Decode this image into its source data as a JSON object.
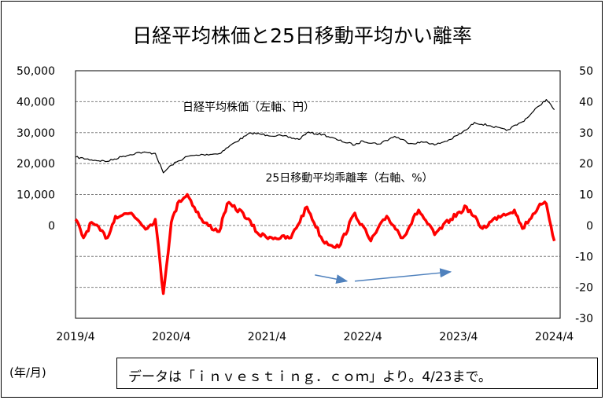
{
  "chart_data": {
    "type": "line",
    "title": "日経平均株価と25日移動平均かい離率",
    "x_ticks": [
      "2019/4",
      "2020/4",
      "2021/4",
      "2022/4",
      "2023/4",
      "2024/4"
    ],
    "x_range": [
      "2019/4",
      "2024/4/23"
    ],
    "left_axis": {
      "ticks": [
        "50,000",
        "40,000",
        "30,000",
        "20,000",
        "10,000",
        "0"
      ],
      "ylim": [
        -30000,
        50000
      ]
    },
    "right_axis": {
      "ticks": [
        "50",
        "40",
        "30",
        "20",
        "10",
        "0",
        "-10",
        "-20",
        "-30"
      ],
      "ylim": [
        -30,
        50
      ]
    },
    "grid": true,
    "series": [
      {
        "name": "日経平均株価（左軸、円）",
        "axis": "left",
        "color": "#000000",
        "points": [
          [
            "2019/4",
            22100
          ],
          [
            "2019/6",
            21200
          ],
          [
            "2019/8",
            20700
          ],
          [
            "2019/10",
            22400
          ],
          [
            "2019/12",
            23600
          ],
          [
            "2020/2",
            23300
          ],
          [
            "2020/3",
            17000
          ],
          [
            "2020/4",
            19500
          ],
          [
            "2020/6",
            22300
          ],
          [
            "2020/8",
            22900
          ],
          [
            "2020/10",
            23200
          ],
          [
            "2020/12",
            26900
          ],
          [
            "2021/2",
            29900
          ],
          [
            "2021/4",
            29200
          ],
          [
            "2021/6",
            28900
          ],
          [
            "2021/8",
            27800
          ],
          [
            "2021/9",
            30000
          ],
          [
            "2021/11",
            29400
          ],
          [
            "2022/1",
            27500
          ],
          [
            "2022/3",
            26000
          ],
          [
            "2022/4",
            27300
          ],
          [
            "2022/6",
            26300
          ],
          [
            "2022/8",
            28800
          ],
          [
            "2022/10",
            26500
          ],
          [
            "2022/12",
            27000
          ],
          [
            "2023/1",
            26000
          ],
          [
            "2023/3",
            27800
          ],
          [
            "2023/5",
            30900
          ],
          [
            "2023/6",
            33300
          ],
          [
            "2023/8",
            32200
          ],
          [
            "2023/10",
            30700
          ],
          [
            "2023/12",
            33500
          ],
          [
            "2024/1",
            35800
          ],
          [
            "2024/2",
            38500
          ],
          [
            "2024/3",
            40700
          ],
          [
            "2024/4",
            37400
          ]
        ]
      },
      {
        "name": "25日移動平均乖離率（右軸、%）",
        "axis": "right",
        "color": "#ff0000",
        "points": [
          [
            "2019/4",
            2
          ],
          [
            "2019/5",
            -4
          ],
          [
            "2019/6",
            1
          ],
          [
            "2019/8",
            -4
          ],
          [
            "2019/9",
            3
          ],
          [
            "2019/11",
            4
          ],
          [
            "2020/1",
            -1
          ],
          [
            "2020/2",
            2
          ],
          [
            "2020/3",
            -22
          ],
          [
            "2020/4",
            1
          ],
          [
            "2020/5",
            8
          ],
          [
            "2020/6",
            10
          ],
          [
            "2020/8",
            1
          ],
          [
            "2020/10",
            -2
          ],
          [
            "2020/11",
            7
          ],
          [
            "2021/1",
            4
          ],
          [
            "2021/3",
            -3
          ],
          [
            "2021/5",
            -4
          ],
          [
            "2021/7",
            -4
          ],
          [
            "2021/9",
            6
          ],
          [
            "2021/11",
            -5
          ],
          [
            "2022/1",
            -7
          ],
          [
            "2022/3",
            4
          ],
          [
            "2022/5",
            -5
          ],
          [
            "2022/7",
            3
          ],
          [
            "2022/9",
            -4
          ],
          [
            "2022/11",
            5
          ],
          [
            "2023/1",
            -3
          ],
          [
            "2023/3",
            2
          ],
          [
            "2023/5",
            6
          ],
          [
            "2023/7",
            -1
          ],
          [
            "2023/9",
            3
          ],
          [
            "2023/11",
            5
          ],
          [
            "2023/12",
            -1
          ],
          [
            "2024/2",
            6
          ],
          [
            "2024/3",
            7
          ],
          [
            "2024/4",
            -5
          ]
        ]
      }
    ],
    "annotations": [
      "日経平均株価（左軸、円）",
      "25日移動平均乖離率（右軸、%）"
    ],
    "arrows": [
      "rising trend (2021/10→2022/2)",
      "rising trend (2022/3→2023/3)"
    ]
  },
  "footer": {
    "unit_note": "(年/月)",
    "source": "データは「ｉｎｖｅｓｔｉｎｇ．ｃｏｍ」より。4/23まで。"
  }
}
